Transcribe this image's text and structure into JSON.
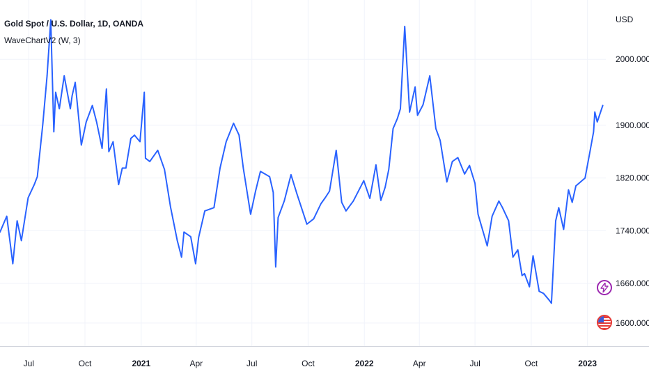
{
  "header": {
    "symbol_title": "Gold Spot / U.S. Dollar, 1D, OANDA",
    "indicator_label": "WaveChartV2 (W, 3)"
  },
  "price_axis": {
    "currency": "USD",
    "tick_labels": [
      "2000.000",
      "1900.000",
      "1820.000",
      "1740.000",
      "1660.000",
      "1600.000"
    ]
  },
  "time_axis": {
    "tick_labels": [
      "Jul",
      "Oct",
      "2021",
      "Apr",
      "Jul",
      "Oct",
      "2022",
      "Apr",
      "Jul",
      "Oct",
      "2023"
    ]
  },
  "badges": [
    {
      "icon": "lightning-bolt-icon",
      "color": "#9c27b0"
    },
    {
      "icon": "us-flag-icon",
      "color": "#e53935"
    }
  ],
  "colors": {
    "series_line": "#2962ff",
    "grid": "#f0f3fa",
    "axis_text": "#131722",
    "background": "#ffffff"
  },
  "chart_data": {
    "type": "line",
    "title": "Gold Spot / U.S. Dollar, 1D, OANDA",
    "xlabel": "",
    "ylabel": "",
    "grid": true,
    "ylim": [
      1565,
      2090
    ],
    "x_range": [
      "2020-05-15",
      "2023-01-31"
    ],
    "x_ticks": [
      "2020-07-01",
      "2020-10-01",
      "2021-01-01",
      "2021-04-01",
      "2021-07-01",
      "2021-10-01",
      "2022-01-01",
      "2022-04-01",
      "2022-07-01",
      "2022-10-01",
      "2023-01-01"
    ],
    "y_ticks": [
      2000,
      1900,
      1820,
      1740,
      1660,
      1600
    ],
    "series": [
      {
        "name": "",
        "x": [
          "2020-05-15",
          "2020-05-26",
          "2020-06-05",
          "2020-06-12",
          "2020-06-19",
          "2020-06-30",
          "2020-07-10",
          "2020-07-15",
          "2020-07-24",
          "2020-07-31",
          "2020-08-06",
          "2020-08-11",
          "2020-08-14",
          "2020-08-20",
          "2020-08-28",
          "2020-09-07",
          "2020-09-10",
          "2020-09-15",
          "2020-09-25",
          "2020-10-03",
          "2020-10-13",
          "2020-10-20",
          "2020-10-29",
          "2020-11-05",
          "2020-11-09",
          "2020-11-16",
          "2020-11-25",
          "2020-12-01",
          "2020-12-07",
          "2020-12-15",
          "2020-12-21",
          "2020-12-30",
          "2021-01-06",
          "2021-01-08",
          "2021-01-15",
          "2021-01-28",
          "2021-02-08",
          "2021-02-18",
          "2021-03-01",
          "2021-03-08",
          "2021-03-12",
          "2021-03-23",
          "2021-03-31",
          "2021-04-05",
          "2021-04-15",
          "2021-04-30",
          "2021-05-10",
          "2021-05-20",
          "2021-06-01",
          "2021-06-10",
          "2021-06-17",
          "2021-06-29",
          "2021-07-07",
          "2021-07-15",
          "2021-07-30",
          "2021-08-05",
          "2021-08-09",
          "2021-08-13",
          "2021-08-23",
          "2021-09-03",
          "2021-09-13",
          "2021-09-29",
          "2021-10-10",
          "2021-10-22",
          "2021-10-29",
          "2021-11-05",
          "2021-11-16",
          "2021-11-25",
          "2021-12-02",
          "2021-12-14",
          "2021-12-31",
          "2022-01-10",
          "2022-01-20",
          "2022-01-28",
          "2022-02-04",
          "2022-02-10",
          "2022-02-17",
          "2022-02-24",
          "2022-03-01",
          "2022-03-08",
          "2022-03-16",
          "2022-03-25",
          "2022-03-29",
          "2022-04-07",
          "2022-04-18",
          "2022-04-28",
          "2022-05-05",
          "2022-05-16",
          "2022-05-25",
          "2022-06-03",
          "2022-06-14",
          "2022-06-22",
          "2022-07-01",
          "2022-07-06",
          "2022-07-21",
          "2022-07-29",
          "2022-08-09",
          "2022-08-15",
          "2022-08-25",
          "2022-09-01",
          "2022-09-09",
          "2022-09-16",
          "2022-09-20",
          "2022-09-28",
          "2022-10-04",
          "2022-10-14",
          "2022-10-21",
          "2022-10-31",
          "2022-11-03",
          "2022-11-10",
          "2022-11-15",
          "2022-11-23",
          "2022-12-01",
          "2022-12-07",
          "2022-12-13",
          "2022-12-28",
          "2023-01-06",
          "2023-01-11",
          "2023-01-13",
          "2023-01-17",
          "2023-01-26"
        ],
        "values": [
          1738,
          1762,
          1690,
          1755,
          1725,
          1790,
          1810,
          1822,
          1902,
          1975,
          2060,
          1890,
          1950,
          1925,
          1975,
          1925,
          1945,
          1965,
          1870,
          1905,
          1930,
          1905,
          1865,
          1955,
          1860,
          1875,
          1810,
          1835,
          1835,
          1880,
          1885,
          1875,
          1950,
          1850,
          1845,
          1862,
          1833,
          1776,
          1725,
          1700,
          1738,
          1731,
          1690,
          1730,
          1770,
          1775,
          1835,
          1875,
          1903,
          1885,
          1835,
          1765,
          1800,
          1830,
          1822,
          1798,
          1685,
          1760,
          1785,
          1825,
          1795,
          1750,
          1758,
          1781,
          1790,
          1800,
          1862,
          1783,
          1770,
          1785,
          1816,
          1789,
          1840,
          1786,
          1806,
          1833,
          1895,
          1910,
          1925,
          2050,
          1920,
          1958,
          1915,
          1931,
          1975,
          1895,
          1877,
          1814,
          1845,
          1851,
          1826,
          1839,
          1812,
          1765,
          1717,
          1762,
          1785,
          1775,
          1755,
          1700,
          1711,
          1672,
          1675,
          1655,
          1702,
          1648,
          1645,
          1634,
          1630,
          1755,
          1775,
          1742,
          1802,
          1783,
          1808,
          1820,
          1865,
          1890,
          1920,
          1905,
          1930
        ]
      }
    ]
  }
}
